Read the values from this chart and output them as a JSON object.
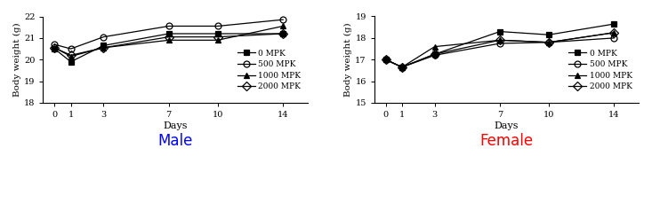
{
  "days": [
    0,
    1,
    3,
    7,
    10,
    14
  ],
  "male": {
    "0MPK": [
      20.5,
      19.9,
      20.65,
      21.2,
      21.2,
      21.2
    ],
    "500MPK": [
      20.7,
      20.5,
      21.05,
      21.55,
      21.55,
      21.85
    ],
    "1000MPK": [
      20.55,
      20.15,
      20.55,
      20.9,
      20.9,
      21.55
    ],
    "2000MPK": [
      20.55,
      20.2,
      20.55,
      21.05,
      21.05,
      21.2
    ]
  },
  "female": {
    "0MPK": [
      17.0,
      16.65,
      17.25,
      18.3,
      18.15,
      18.65
    ],
    "500MPK": [
      17.0,
      16.65,
      17.2,
      17.75,
      17.8,
      18.0
    ],
    "1000MPK": [
      17.0,
      16.65,
      17.6,
      17.9,
      17.8,
      18.25
    ],
    "2000MPK": [
      17.0,
      16.65,
      17.25,
      17.9,
      17.8,
      18.25
    ]
  },
  "male_ylim": [
    18,
    22
  ],
  "male_yticks": [
    18,
    19,
    20,
    21,
    22
  ],
  "female_ylim": [
    15,
    19
  ],
  "female_yticks": [
    15,
    16,
    17,
    18,
    19
  ],
  "xticks": [
    0,
    1,
    3,
    7,
    10,
    14
  ],
  "xlabel": "Days",
  "ylabel": "Body weight (g)",
  "male_label": "Male",
  "female_label": "Female",
  "legend_labels": [
    "0 MPK",
    "500 MPK",
    "1000 MPK",
    "2000 MPK"
  ],
  "line_color": "black",
  "male_color": "blue",
  "female_color": "red",
  "marker_sizes": [
    4,
    5,
    4,
    5
  ],
  "markers": [
    "s",
    "o",
    "^",
    "D"
  ],
  "fillstyles": [
    "full",
    "none",
    "full",
    "none"
  ]
}
